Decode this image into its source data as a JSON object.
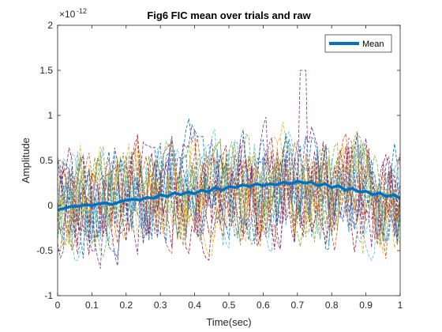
{
  "chart_data": {
    "type": "line",
    "title": "Fig6 FIC mean over trials and raw",
    "xlabel": "Time(sec)",
    "ylabel": "Amplitude",
    "xlim": [
      0,
      1
    ],
    "ylim": [
      -1,
      2
    ],
    "y_exponent_base": "×10",
    "y_exponent_power": "-12",
    "xticks": [
      "0",
      "0.1",
      "0.2",
      "0.3",
      "0.4",
      "0.5",
      "0.6",
      "0.7",
      "0.8",
      "0.9",
      "1"
    ],
    "yticks": [
      "-1",
      "-0.5",
      "0",
      "0.5",
      "1",
      "1.5",
      "2"
    ],
    "grid": false,
    "legend": {
      "entries": [
        "Mean"
      ],
      "location": "top-right"
    },
    "raw_trial_colors": [
      "#0072BD",
      "#D95319",
      "#EDB120",
      "#7E2F8E",
      "#77AC30",
      "#4DBEEE",
      "#A2142F"
    ],
    "raw_trial_count": 20,
    "raw_trial_style": "dashed",
    "series": [
      {
        "name": "Mean",
        "color": "#0072BD",
        "style": "solid",
        "x": [
          0,
          0.02,
          0.04,
          0.06,
          0.08,
          0.1,
          0.12,
          0.14,
          0.16,
          0.18,
          0.2,
          0.22,
          0.24,
          0.26,
          0.28,
          0.3,
          0.32,
          0.34,
          0.36,
          0.38,
          0.4,
          0.42,
          0.44,
          0.46,
          0.48,
          0.5,
          0.52,
          0.54,
          0.56,
          0.58,
          0.6,
          0.62,
          0.64,
          0.66,
          0.68,
          0.7,
          0.72,
          0.74,
          0.76,
          0.78,
          0.8,
          0.82,
          0.84,
          0.86,
          0.88,
          0.9,
          0.92,
          0.94,
          0.96,
          0.98,
          1.0
        ],
        "y": [
          -0.05,
          -0.03,
          -0.01,
          -0.01,
          0.01,
          0.0,
          0.02,
          0.03,
          0.01,
          0.04,
          0.06,
          0.07,
          0.06,
          0.09,
          0.08,
          0.12,
          0.1,
          0.14,
          0.12,
          0.15,
          0.13,
          0.17,
          0.15,
          0.2,
          0.17,
          0.21,
          0.2,
          0.23,
          0.21,
          0.24,
          0.22,
          0.24,
          0.23,
          0.26,
          0.24,
          0.27,
          0.25,
          0.26,
          0.22,
          0.24,
          0.2,
          0.22,
          0.17,
          0.19,
          0.15,
          0.16,
          0.12,
          0.14,
          0.1,
          0.12,
          0.08
        ]
      }
    ]
  }
}
